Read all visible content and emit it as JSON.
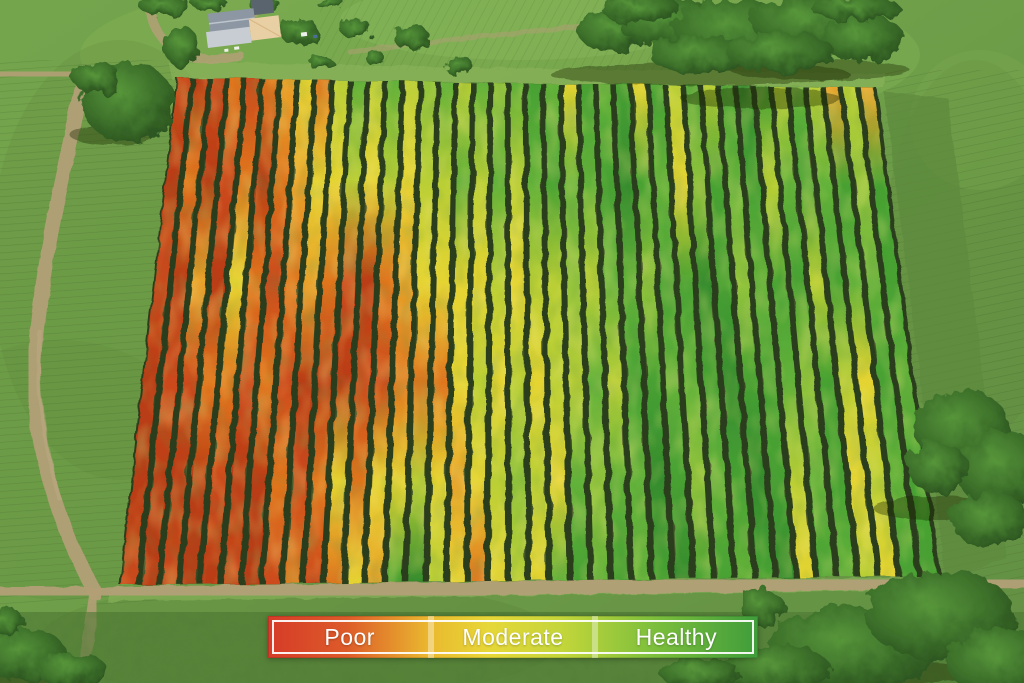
{
  "legend": {
    "labels": [
      {
        "label": "Poor"
      },
      {
        "label": "Moderate"
      },
      {
        "label": "Healthy"
      }
    ],
    "gradient": [
      "#d63b28",
      "#dd5b29",
      "#eab92f",
      "#e7d738",
      "#c3d63a",
      "#7fc03c",
      "#3f9d3b"
    ]
  },
  "scene": {
    "colors": {
      "grass_base": "#6f9f49",
      "grass_light": "#8ab85a",
      "grass_dark": "#577f38",
      "mow_line": "rgba(28,58,20,0.20)",
      "path_tan": "#b3a077",
      "path_tan_light": "#c2b089",
      "soil_dark": "#2a3d1e",
      "headland_light": "#8db55c",
      "headland_dark": "#5d8a3e",
      "shrub_dark": "#4a7531",
      "tree_light": "#57963a",
      "tree_mid": "#3c6f2a",
      "tree_dark": "#24481b",
      "shadow": "rgba(18,36,12,0.38)",
      "house_roof": "#8d97a3",
      "house_ridge": "#bcc4cc",
      "house_front": "#c8cdd3",
      "shed_dark_roof": "#5a646e",
      "shed_tan": "#e9d0a4",
      "shed_tan_edge": "#d9b886",
      "speck_white": "#eef0ea",
      "speck_blue": "#4a6f9e"
    },
    "field": {
      "row_count": 40,
      "corners": {
        "tl": [
          176,
          78
        ],
        "tr": [
          877,
          88
        ],
        "br": [
          941,
          576
        ],
        "bl": [
          119,
          585
        ]
      },
      "rows": [
        [
          "#cc4a1c",
          "#b93c15",
          "#cc4a1c",
          "#b93c15",
          "#b93c15",
          "#cc4a1c"
        ],
        [
          "#b93c15",
          "#e0761f",
          "#b93c15",
          "#cc4a1c",
          "#b93c15",
          "#b93c15"
        ],
        [
          "#cc4a1c",
          "#b93c15",
          "#e9a32a",
          "#cc4a1c",
          "#b93c15",
          "#cc4a1c"
        ],
        [
          "#e0761f",
          "#cc4a1c",
          "#b93c15",
          "#e0761f",
          "#b93c15",
          "#b93c15"
        ],
        [
          "#cc4a1c",
          "#e0761f",
          "#e5d431",
          "#e0761f",
          "#cc4a1c",
          "#b93c15"
        ],
        [
          "#e0761f",
          "#b93c15",
          "#e0761f",
          "#cc4a1c",
          "#b93c15",
          "#cc4a1c"
        ],
        [
          "#e9a32a",
          "#e0761f",
          "#cc4a1c",
          "#e0761f",
          "#b93c15",
          "#b93c15"
        ],
        [
          "#e5d431",
          "#e9a32a",
          "#e0761f",
          "#cc4a1c",
          "#e0761f",
          "#cc4a1c"
        ],
        [
          "#e0761f",
          "#e5d431",
          "#e9a32a",
          "#b93c15",
          "#cc4a1c",
          "#e0761f"
        ],
        [
          "#b9cf36",
          "#e5d431",
          "#e0761f",
          "#b93c15",
          "#e0761f",
          "#cc4a1c"
        ],
        [
          "#63b23a",
          "#b9cf36",
          "#cc4a1c",
          "#b93c15",
          "#e5d431",
          "#e0761f"
        ],
        [
          "#b9cf36",
          "#e5d431",
          "#b93c15",
          "#cc4a1c",
          "#e0761f",
          "#e5d431"
        ],
        [
          "#63b23a",
          "#b9cf36",
          "#e0761f",
          "#cc4a1c",
          "#e5d431",
          "#e9a32a"
        ],
        [
          "#b9cf36",
          "#e5d431",
          "#e9a32a",
          "#e0761f",
          "#e5d431",
          "#47a233"
        ],
        [
          "#93c43c",
          "#b9cf36",
          "#e5d431",
          "#e0761f",
          "#b9cf36",
          "#358c2d"
        ],
        [
          "#63b23a",
          "#b9cf36",
          "#e5d431",
          "#e0761f",
          "#e5d431",
          "#b9cf36"
        ],
        [
          "#b9cf36",
          "#63b23a",
          "#e5d431",
          "#e5d431",
          "#e9a32a",
          "#e5d431"
        ],
        [
          "#63b23a",
          "#b9cf36",
          "#e5d431",
          "#b9cf36",
          "#e5d431",
          "#e0761f"
        ],
        [
          "#93c43c",
          "#63b23a",
          "#b9cf36",
          "#e5d431",
          "#b9cf36",
          "#e5d431"
        ],
        [
          "#63b23a",
          "#b9cf36",
          "#e5d431",
          "#b9cf36",
          "#93c43c",
          "#b9cf36"
        ],
        [
          "#47a233",
          "#63b23a",
          "#b9cf36",
          "#e5d431",
          "#b9cf36",
          "#e5d431"
        ],
        [
          "#63b23a",
          "#47a233",
          "#b9cf36",
          "#b9cf36",
          "#e5d431",
          "#63b23a"
        ],
        [
          "#e5d431",
          "#63b23a",
          "#93c43c",
          "#b9cf36",
          "#63b23a",
          "#47a233"
        ],
        [
          "#47a233",
          "#63b23a",
          "#b9cf36",
          "#63b23a",
          "#93c43c",
          "#63b23a"
        ],
        [
          "#63b23a",
          "#47a233",
          "#63b23a",
          "#b9cf36",
          "#63b23a",
          "#47a233"
        ],
        [
          "#47a233",
          "#358c2d",
          "#63b23a",
          "#47a233",
          "#63b23a",
          "#63b23a"
        ],
        [
          "#e5d431",
          "#47a233",
          "#93c43c",
          "#47a233",
          "#358c2d",
          "#47a233"
        ],
        [
          "#47a233",
          "#63b23a",
          "#47a233",
          "#63b23a",
          "#47a233",
          "#358c2d"
        ],
        [
          "#b9cf36",
          "#e5d431",
          "#47a233",
          "#63b23a",
          "#93c43c",
          "#47a233"
        ],
        [
          "#47a233",
          "#93c43c",
          "#358c2d",
          "#47a233",
          "#63b23a",
          "#47a233"
        ],
        [
          "#b9cf36",
          "#47a233",
          "#47a233",
          "#358c2d",
          "#47a233",
          "#63b23a"
        ],
        [
          "#47a233",
          "#63b23a",
          "#93c43c",
          "#47a233",
          "#358c2d",
          "#47a233"
        ],
        [
          "#358c2d",
          "#47a233",
          "#63b23a",
          "#47a233",
          "#47a233",
          "#358c2d"
        ],
        [
          "#47a233",
          "#b9cf36",
          "#47a233",
          "#63b23a",
          "#b9cf36",
          "#e5d431"
        ],
        [
          "#b9cf36",
          "#63b23a",
          "#47a233",
          "#93c43c",
          "#63b23a",
          "#47a233"
        ],
        [
          "#63b23a",
          "#47a233",
          "#b9cf36",
          "#47a233",
          "#47a233",
          "#63b23a"
        ],
        [
          "#b9cf36",
          "#63b23a",
          "#47a233",
          "#b9cf36",
          "#e5d431",
          "#b9cf36"
        ],
        [
          "#e9a32a",
          "#47a233",
          "#63b23a",
          "#e5d431",
          "#b9cf36",
          "#e5d431"
        ],
        [
          "#b9cf36",
          "#93c43c",
          "#63b23a",
          "#47a233",
          "#63b23a",
          "#47a233"
        ],
        [
          "#e9a32a",
          "#47a233",
          "#47a233",
          "#63b23a",
          "#47a233",
          "#47a233"
        ]
      ]
    }
  }
}
